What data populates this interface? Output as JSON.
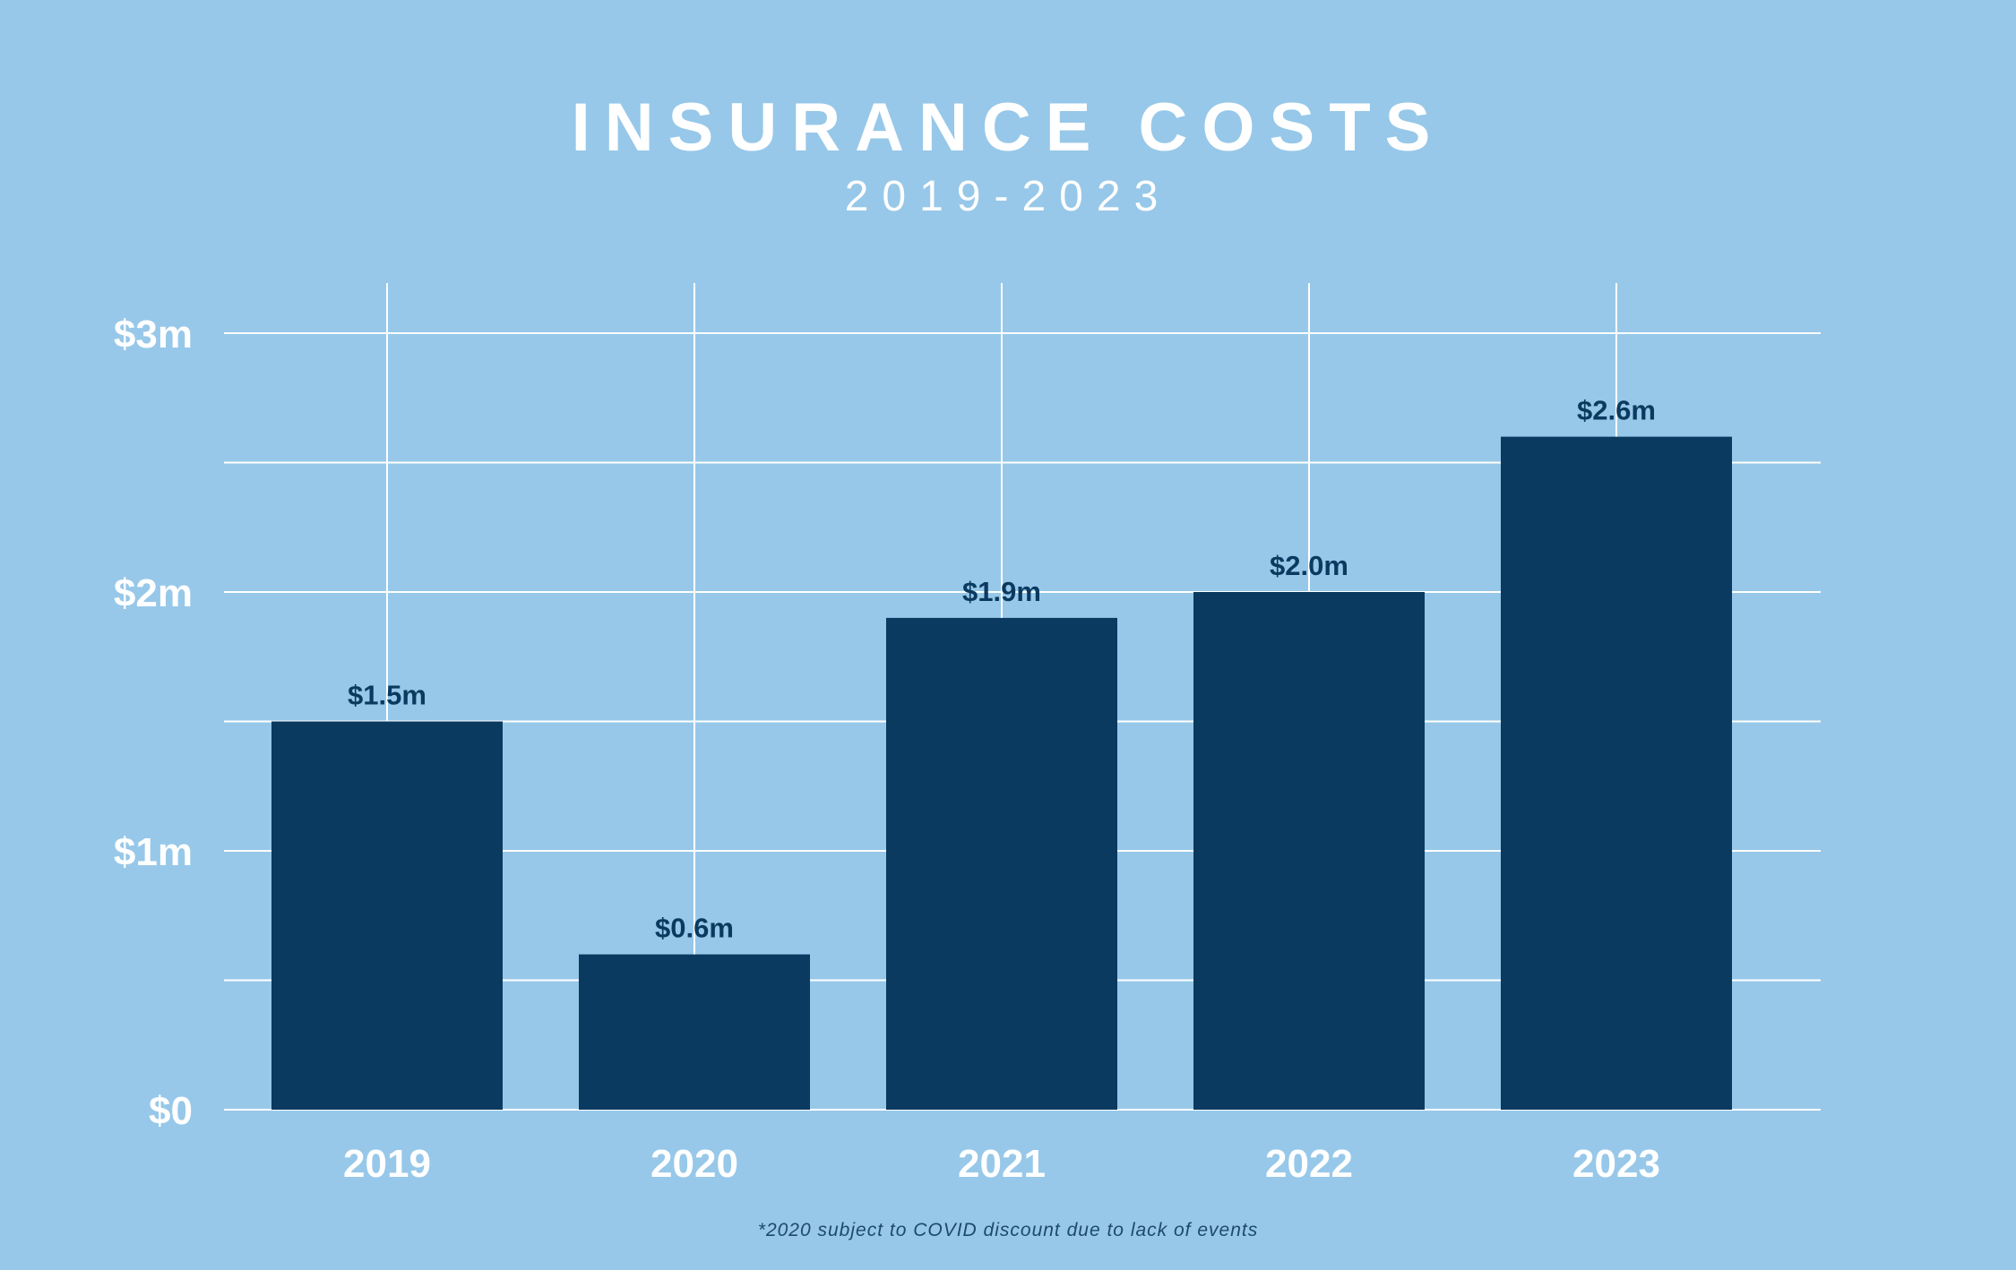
{
  "chart_data": {
    "type": "bar",
    "title": "INSURANCE COSTS",
    "subtitle": "2019-2023",
    "categories": [
      "2019",
      "2020",
      "2021",
      "2022",
      "2023"
    ],
    "values": [
      1.5,
      0.6,
      1.9,
      2.0,
      2.6
    ],
    "data_labels": [
      "$1.5m",
      "$0.6m",
      "$1.9m",
      "$2.0m",
      "$2.6m"
    ],
    "y_ticks": [
      0,
      1,
      2,
      3
    ],
    "y_tick_labels": [
      "$0",
      "$1m",
      "$2m",
      "$3m"
    ],
    "xlabel": "",
    "ylabel": "",
    "ylim": [
      0,
      3
    ],
    "grid": true,
    "footnote": "*2020 subject to COVID discount due to lack of events",
    "colors": {
      "background": "#97c8e9",
      "bar": "#0a3a5f",
      "grid": "#ffffff",
      "text": "#ffffff",
      "data_label": "#0a3a5f"
    }
  }
}
